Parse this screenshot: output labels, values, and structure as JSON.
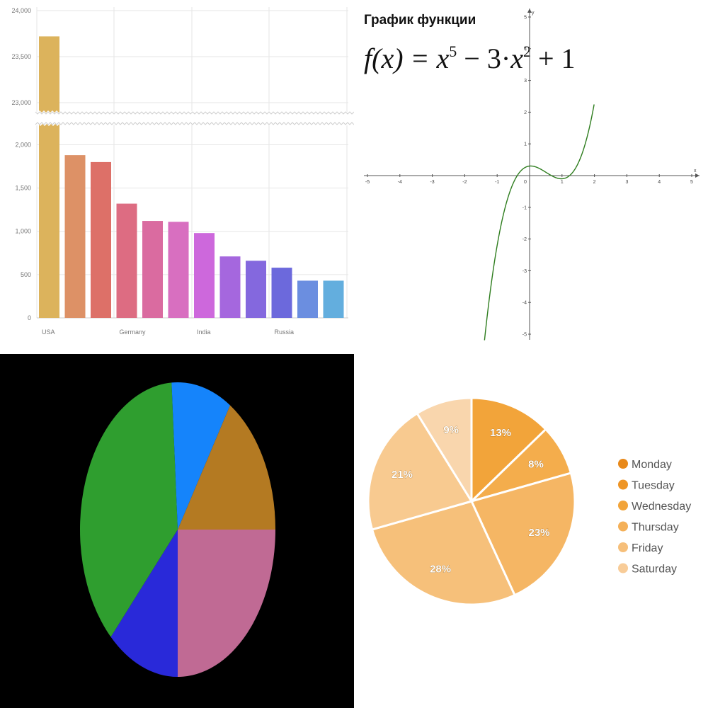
{
  "chart_data": [
    {
      "type": "bar",
      "broken_axis": true,
      "categories": [
        "USA",
        "",
        "",
        "Germany",
        "",
        "",
        "India",
        "",
        "",
        "Russia",
        "",
        ""
      ],
      "values": [
        23720,
        1880,
        1800,
        1320,
        1120,
        1110,
        980,
        710,
        660,
        580,
        430,
        430
      ],
      "colors": [
        "#dcb35c",
        "#dd9166",
        "#dd7068",
        "#dd6c82",
        "#da6ba0",
        "#d86fc0",
        "#cd68dc",
        "#a567de",
        "#8468de",
        "#6c69dc",
        "#6b8ee0",
        "#63aede"
      ],
      "yticks_lower": [
        "0",
        "500",
        "1,000",
        "1,500",
        "2,000"
      ],
      "yticks_upper": [
        "23,000",
        "23,500",
        "24,000"
      ],
      "lower_range": [
        0,
        2200
      ],
      "upper_range": [
        22900,
        24000
      ],
      "grid": true
    },
    {
      "type": "line",
      "title": "График функции",
      "formula": {
        "lhs": "f",
        "var": "x",
        "rest1": "x",
        "exp1": "5",
        "minus": "− 3·",
        "rest2": "x",
        "exp2": "2",
        "plus": "+ 1"
      },
      "xlabel": "x",
      "ylabel": "y",
      "xlim": [
        -5,
        5
      ],
      "ylim": [
        -5,
        5
      ],
      "xticks": [
        "-5",
        "-4",
        "-3",
        "-2",
        "-1",
        "0",
        "1",
        "2",
        "3",
        "4",
        "5"
      ],
      "yticks": [
        "-5",
        "-4",
        "-3",
        "-2",
        "-1",
        "1",
        "2",
        "3",
        "4",
        "5"
      ],
      "line_color": "#2e7d1e",
      "note": "curve plotted as the cubic-like shape shown"
    },
    {
      "type": "pie",
      "slices": [
        {
          "color": "#b47a22",
          "value": 16
        },
        {
          "color": "#c06a94",
          "value": 25
        },
        {
          "color": "#2929d9",
          "value": 12
        },
        {
          "color": "#2f9e2f",
          "value": 37
        },
        {
          "color": "#1584fb",
          "value": 10
        }
      ]
    },
    {
      "type": "pie",
      "slices": [
        {
          "label": "Monday",
          "value": 13,
          "text": "13%",
          "color": "#f2a43a"
        },
        {
          "label": "Tuesday",
          "value": 8,
          "text": "8%",
          "color": "#f4ad4c"
        },
        {
          "label": "Wednesday",
          "value": 23,
          "text": "23%",
          "color": "#f5b664"
        },
        {
          "label": "Thursday",
          "value": 28,
          "text": "28%",
          "color": "#f6c07a"
        },
        {
          "label": "Friday",
          "value": 21,
          "text": "21%",
          "color": "#f8ca90"
        },
        {
          "label": "Saturday",
          "value": 9,
          "text": "9%",
          "color": "#f9d6ad"
        }
      ],
      "legend": [
        "Monday",
        "Tuesday",
        "Wednesday",
        "Thursday",
        "Friday",
        "Saturday"
      ],
      "legend_colors": [
        "#e8891a",
        "#ee9526",
        "#f2a43a",
        "#f4b058",
        "#f6bf7a",
        "#f8cc98"
      ]
    }
  ]
}
